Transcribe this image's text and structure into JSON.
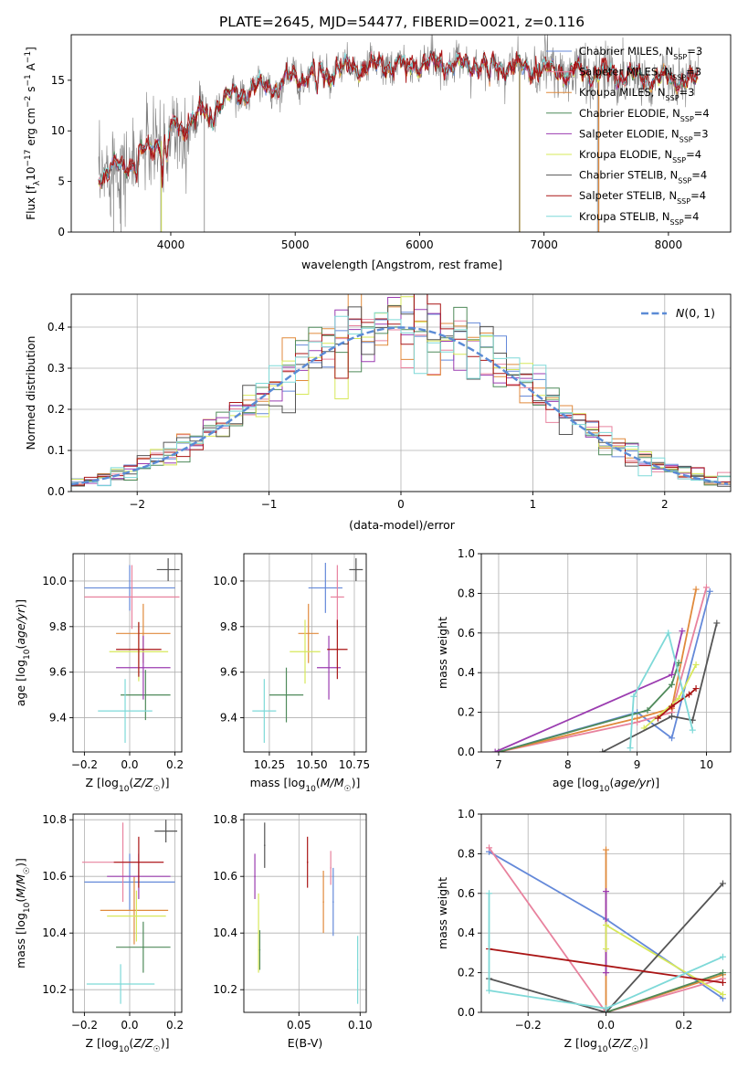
{
  "title": "PLATE=2645, MJD=54477, FIBERID=0021, z=0.116",
  "colors": {
    "chabrier_miles": "#6489d9",
    "salpeter_miles": "#e8829e",
    "kroupa_miles": "#e08a3c",
    "chabrier_elodie": "#4f8a5a",
    "salpeter_elodie": "#9b3cb0",
    "kroupa_elodie": "#d7e85a",
    "chabrier_stelib": "#555555",
    "salpeter_stelib": "#aa1515",
    "kroupa_stelib": "#7ed9d8",
    "data": "#808080",
    "normal_curve": "#5b8bd6"
  },
  "chart_data": [
    {
      "type": "line",
      "id": "spectrum",
      "xlabel": "wavelength [Angstrom, rest frame]",
      "ylabel": "Flux [f_λ 10^-17 erg cm^-2 s^-1 A^-1]",
      "xlim": [
        3200,
        8500
      ],
      "ylim": [
        0,
        19.5
      ],
      "xticks": [
        "4000",
        "5000",
        "6000",
        "7000",
        "8000"
      ],
      "yticks": [
        "0",
        "5",
        "10",
        "15"
      ],
      "x_range": [
        3420,
        8240
      ],
      "continuum": {
        "x": [
          3420,
          3700,
          4000,
          4500,
          5000,
          5500,
          6000,
          6500,
          7000,
          7500,
          8000,
          8240
        ],
        "y": [
          5.6,
          7,
          10,
          13.5,
          15.3,
          16.3,
          16.6,
          16.5,
          16.1,
          15.6,
          15.1,
          14.9
        ]
      },
      "legend": [
        {
          "label": "Chabrier MILES, N_SSP=3",
          "color_key": "chabrier_miles"
        },
        {
          "label": "Salpeter MILES, N_SSP=3",
          "color_key": "salpeter_miles"
        },
        {
          "label": "Kroupa MILES, N_SSP=3",
          "color_key": "kroupa_miles"
        },
        {
          "label": "Chabrier ELODIE, N_SSP=4",
          "color_key": "chabrier_elodie"
        },
        {
          "label": "Salpeter ELODIE, N_SSP=3",
          "color_key": "salpeter_elodie"
        },
        {
          "label": "Kroupa ELODIE, N_SSP=4",
          "color_key": "kroupa_elodie"
        },
        {
          "label": "Chabrier STELIB, N_SSP=4",
          "color_key": "chabrier_stelib"
        },
        {
          "label": "Salpeter STELIB, N_SSP=4",
          "color_key": "salpeter_stelib"
        },
        {
          "label": "Kroupa STELIB, N_SSP=4",
          "color_key": "kroupa_stelib"
        }
      ]
    },
    {
      "type": "histogram",
      "id": "residuals",
      "xlabel": "(data-model)/error",
      "ylabel": "Normed distribution",
      "xlim": [
        -2.5,
        2.5
      ],
      "ylim": [
        0,
        0.48
      ],
      "xticks": [
        "-2",
        "-1",
        "0",
        "1",
        "2"
      ],
      "yticks": [
        "0.0",
        "0.1",
        "0.2",
        "0.3",
        "0.4"
      ],
      "bin_width": 0.1,
      "normal_label": "N(0,1)"
    },
    {
      "type": "scatter",
      "id": "age_vs_Z",
      "xlabel": "Z [log10(Z/Z☉)]",
      "ylabel": "age [log10(age/yr)]",
      "xlim": [
        -0.25,
        0.23
      ],
      "ylim": [
        9.25,
        10.12
      ],
      "xticks": [
        "-0.2",
        "0.0",
        "0.2"
      ],
      "yticks": [
        "9.4",
        "9.6",
        "9.8",
        "10.0"
      ],
      "points": [
        {
          "color_key": "chabrier_miles",
          "x": 0.0,
          "xerr": 0.2,
          "y": 9.97,
          "yerr": 0.1
        },
        {
          "color_key": "salpeter_miles",
          "x": 0.01,
          "xerr": 0.21,
          "y": 9.93,
          "yerr": 0.14
        },
        {
          "color_key": "kroupa_miles",
          "x": 0.06,
          "xerr": 0.12,
          "y": 9.77,
          "yerr": 0.13
        },
        {
          "color_key": "chabrier_elodie",
          "x": 0.07,
          "xerr": 0.11,
          "y": 9.5,
          "yerr": 0.11
        },
        {
          "color_key": "salpeter_elodie",
          "x": 0.06,
          "xerr": 0.12,
          "y": 9.62,
          "yerr": 0.14
        },
        {
          "color_key": "kroupa_elodie",
          "x": 0.04,
          "xerr": 0.13,
          "y": 9.69,
          "yerr": 0.13
        },
        {
          "color_key": "chabrier_stelib",
          "x": 0.17,
          "xerr": 0.05,
          "y": 10.05,
          "yerr": 0.05
        },
        {
          "color_key": "salpeter_stelib",
          "x": 0.04,
          "xerr": 0.1,
          "y": 9.7,
          "yerr": 0.12
        },
        {
          "color_key": "kroupa_stelib",
          "x": -0.02,
          "xerr": 0.12,
          "y": 9.43,
          "yerr": 0.14
        }
      ]
    },
    {
      "type": "scatter",
      "id": "age_vs_mass",
      "xlabel": "mass [log10(M/M☉)]",
      "ylabel": "",
      "xlim": [
        10.1,
        10.82
      ],
      "ylim": [
        9.25,
        10.12
      ],
      "xticks": [
        "10.25",
        "10.50",
        "10.75"
      ],
      "yticks": [
        "9.4",
        "9.6",
        "9.8",
        "10.0"
      ],
      "points": [
        {
          "color_key": "chabrier_miles",
          "x": 10.58,
          "xerr": 0.1,
          "y": 9.97,
          "yerr": 0.11
        },
        {
          "color_key": "salpeter_miles",
          "x": 10.65,
          "xerr": 0.04,
          "y": 9.93,
          "yerr": 0.14
        },
        {
          "color_key": "kroupa_miles",
          "x": 10.48,
          "xerr": 0.06,
          "y": 9.77,
          "yerr": 0.13
        },
        {
          "color_key": "chabrier_elodie",
          "x": 10.35,
          "xerr": 0.1,
          "y": 9.5,
          "yerr": 0.12
        },
        {
          "color_key": "salpeter_elodie",
          "x": 10.6,
          "xerr": 0.07,
          "y": 9.62,
          "yerr": 0.14
        },
        {
          "color_key": "kroupa_elodie",
          "x": 10.46,
          "xerr": 0.09,
          "y": 9.69,
          "yerr": 0.14
        },
        {
          "color_key": "chabrier_stelib",
          "x": 10.76,
          "xerr": 0.04,
          "y": 10.05,
          "yerr": 0.05
        },
        {
          "color_key": "salpeter_stelib",
          "x": 10.65,
          "xerr": 0.06,
          "y": 9.7,
          "yerr": 0.13
        },
        {
          "color_key": "kroupa_stelib",
          "x": 10.22,
          "xerr": 0.07,
          "y": 9.43,
          "yerr": 0.14
        }
      ]
    },
    {
      "type": "line",
      "id": "mass_weight_vs_age",
      "xlabel": "age [log10(age/yr)]",
      "ylabel": "mass weight",
      "xlim": [
        6.75,
        10.35
      ],
      "ylim": [
        0,
        1.0
      ],
      "xticks": [
        "7",
        "8",
        "9",
        "10"
      ],
      "yticks": [
        "0.0",
        "0.2",
        "0.4",
        "0.6",
        "0.8",
        "1.0"
      ],
      "series": [
        {
          "color_key": "chabrier_miles",
          "x": [
            7.0,
            9.0,
            9.5,
            10.05
          ],
          "y": [
            0.0,
            0.2,
            0.07,
            0.81
          ]
        },
        {
          "color_key": "salpeter_miles",
          "x": [
            7.0,
            9.0,
            9.5,
            10.0
          ],
          "y": [
            0.0,
            0.15,
            0.2,
            0.83
          ]
        },
        {
          "color_key": "kroupa_miles",
          "x": [
            7.0,
            9.0,
            9.5,
            9.85
          ],
          "y": [
            0.0,
            0.17,
            0.22,
            0.82
          ]
        },
        {
          "color_key": "chabrier_elodie",
          "x": [
            7.0,
            9.15,
            9.5,
            9.6
          ],
          "y": [
            0.0,
            0.21,
            0.34,
            0.45
          ]
        },
        {
          "color_key": "salpeter_elodie",
          "x": [
            6.95,
            9.5,
            9.65
          ],
          "y": [
            0.0,
            0.39,
            0.61
          ]
        },
        {
          "color_key": "kroupa_elodie",
          "x": [
            9.1,
            9.6,
            9.85
          ],
          "y": [
            0.12,
            0.27,
            0.44
          ]
        },
        {
          "color_key": "chabrier_stelib",
          "x": [
            8.5,
            9.5,
            9.8,
            10.15
          ],
          "y": [
            0.0,
            0.18,
            0.16,
            0.65
          ]
        },
        {
          "color_key": "salpeter_stelib",
          "x": [
            9.3,
            9.5,
            9.75,
            9.85
          ],
          "y": [
            0.17,
            0.23,
            0.29,
            0.32
          ]
        },
        {
          "color_key": "kroupa_stelib",
          "x": [
            8.9,
            8.95,
            9.45,
            9.8
          ],
          "y": [
            0.02,
            0.28,
            0.6,
            0.11
          ]
        }
      ]
    },
    {
      "type": "scatter",
      "id": "mass_vs_Z",
      "xlabel": "Z [log10(Z/Z☉)]",
      "ylabel": "mass [log10(M/M☉)]",
      "xlim": [
        -0.25,
        0.23
      ],
      "ylim": [
        10.12,
        10.82
      ],
      "xticks": [
        "-0.2",
        "0.0",
        "0.2"
      ],
      "yticks": [
        "10.2",
        "10.4",
        "10.6",
        "10.8"
      ],
      "points": [
        {
          "color_key": "chabrier_miles",
          "x": 0.0,
          "xerr": 0.2,
          "y": 10.58,
          "yerr": 0.1
        },
        {
          "color_key": "salpeter_miles",
          "x": -0.03,
          "xerr": 0.18,
          "y": 10.65,
          "yerr": 0.14
        },
        {
          "color_key": "kroupa_miles",
          "x": 0.02,
          "xerr": 0.15,
          "y": 10.48,
          "yerr": 0.12
        },
        {
          "color_key": "chabrier_elodie",
          "x": 0.06,
          "xerr": 0.12,
          "y": 10.35,
          "yerr": 0.09
        },
        {
          "color_key": "salpeter_elodie",
          "x": 0.04,
          "xerr": 0.14,
          "y": 10.6,
          "yerr": 0.08
        },
        {
          "color_key": "kroupa_elodie",
          "x": 0.03,
          "xerr": 0.13,
          "y": 10.46,
          "yerr": 0.09
        },
        {
          "color_key": "chabrier_stelib",
          "x": 0.16,
          "xerr": 0.05,
          "y": 10.76,
          "yerr": 0.04
        },
        {
          "color_key": "salpeter_stelib",
          "x": 0.04,
          "xerr": 0.11,
          "y": 10.65,
          "yerr": 0.09
        },
        {
          "color_key": "kroupa_stelib",
          "x": -0.04,
          "xerr": 0.15,
          "y": 10.22,
          "yerr": 0.07
        }
      ]
    },
    {
      "type": "scatter",
      "id": "mass_vs_ebv",
      "xlabel": "E(B-V)",
      "ylabel": "",
      "xlim": [
        0.005,
        0.105
      ],
      "ylim": [
        10.12,
        10.82
      ],
      "xticks": [
        "0.05",
        "0.10"
      ],
      "yticks": [
        "10.2",
        "10.4",
        "10.6",
        "10.8"
      ],
      "points": [
        {
          "color_key": "chabrier_miles",
          "x": 0.078,
          "y": 10.51,
          "yerr": 0.12
        },
        {
          "color_key": "salpeter_miles",
          "x": 0.076,
          "y": 10.63,
          "yerr": 0.06
        },
        {
          "color_key": "kroupa_miles",
          "x": 0.07,
          "y": 10.51,
          "yerr": 0.11
        },
        {
          "color_key": "chabrier_elodie",
          "x": 0.018,
          "y": 10.34,
          "yerr": 0.07
        },
        {
          "color_key": "salpeter_elodie",
          "x": 0.014,
          "y": 10.6,
          "yerr": 0.08
        },
        {
          "color_key": "kroupa_elodie",
          "x": 0.017,
          "y": 10.4,
          "yerr": 0.14
        },
        {
          "color_key": "chabrier_stelib",
          "x": 0.022,
          "y": 10.71,
          "yerr": 0.08
        },
        {
          "color_key": "salpeter_stelib",
          "x": 0.057,
          "y": 10.65,
          "yerr": 0.09
        },
        {
          "color_key": "kroupa_stelib",
          "x": 0.098,
          "y": 10.27,
          "yerr": 0.12
        }
      ]
    },
    {
      "type": "line",
      "id": "mass_weight_vs_Z",
      "xlabel": "Z [log10(Z/Z☉)]",
      "ylabel": "mass weight",
      "xlim": [
        -0.32,
        0.32
      ],
      "ylim": [
        0,
        1.0
      ],
      "xticks": [
        "-0.2",
        "0.0",
        "0.2"
      ],
      "yticks": [
        "0.0",
        "0.2",
        "0.4",
        "0.6",
        "0.8",
        "1.0"
      ],
      "series": [
        {
          "color_key": "chabrier_miles",
          "x": [
            -0.3,
            0.0,
            0.3
          ],
          "y": [
            0.81,
            0.47,
            0.07
          ]
        },
        {
          "color_key": "salpeter_miles",
          "x": [
            -0.3,
            0.0,
            0.3
          ],
          "y": [
            0.83,
            0.0,
            0.17
          ]
        },
        {
          "color_key": "kroupa_miles",
          "x": [
            0.0,
            0.0,
            0.3
          ],
          "y": [
            0.82,
            0.0,
            0.19
          ]
        },
        {
          "color_key": "chabrier_elodie",
          "x": [
            0.0,
            0.3
          ],
          "y": [
            0.0,
            0.2
          ]
        },
        {
          "color_key": "salpeter_elodie",
          "x": [
            0.0,
            0.0
          ],
          "y": [
            0.61,
            0.2
          ]
        },
        {
          "color_key": "kroupa_elodie",
          "x": [
            0.0,
            0.0,
            0.3
          ],
          "y": [
            0.32,
            0.44,
            0.09
          ]
        },
        {
          "color_key": "chabrier_stelib",
          "x": [
            -0.3,
            0.0,
            0.3
          ],
          "y": [
            0.17,
            0.0,
            0.65
          ]
        },
        {
          "color_key": "salpeter_stelib",
          "x": [
            -0.3,
            0.3
          ],
          "y": [
            0.32,
            0.15
          ]
        },
        {
          "color_key": "kroupa_stelib",
          "x": [
            -0.3,
            -0.3,
            0.0,
            0.3
          ],
          "y": [
            0.6,
            0.11,
            0.02,
            0.28
          ]
        }
      ]
    }
  ]
}
